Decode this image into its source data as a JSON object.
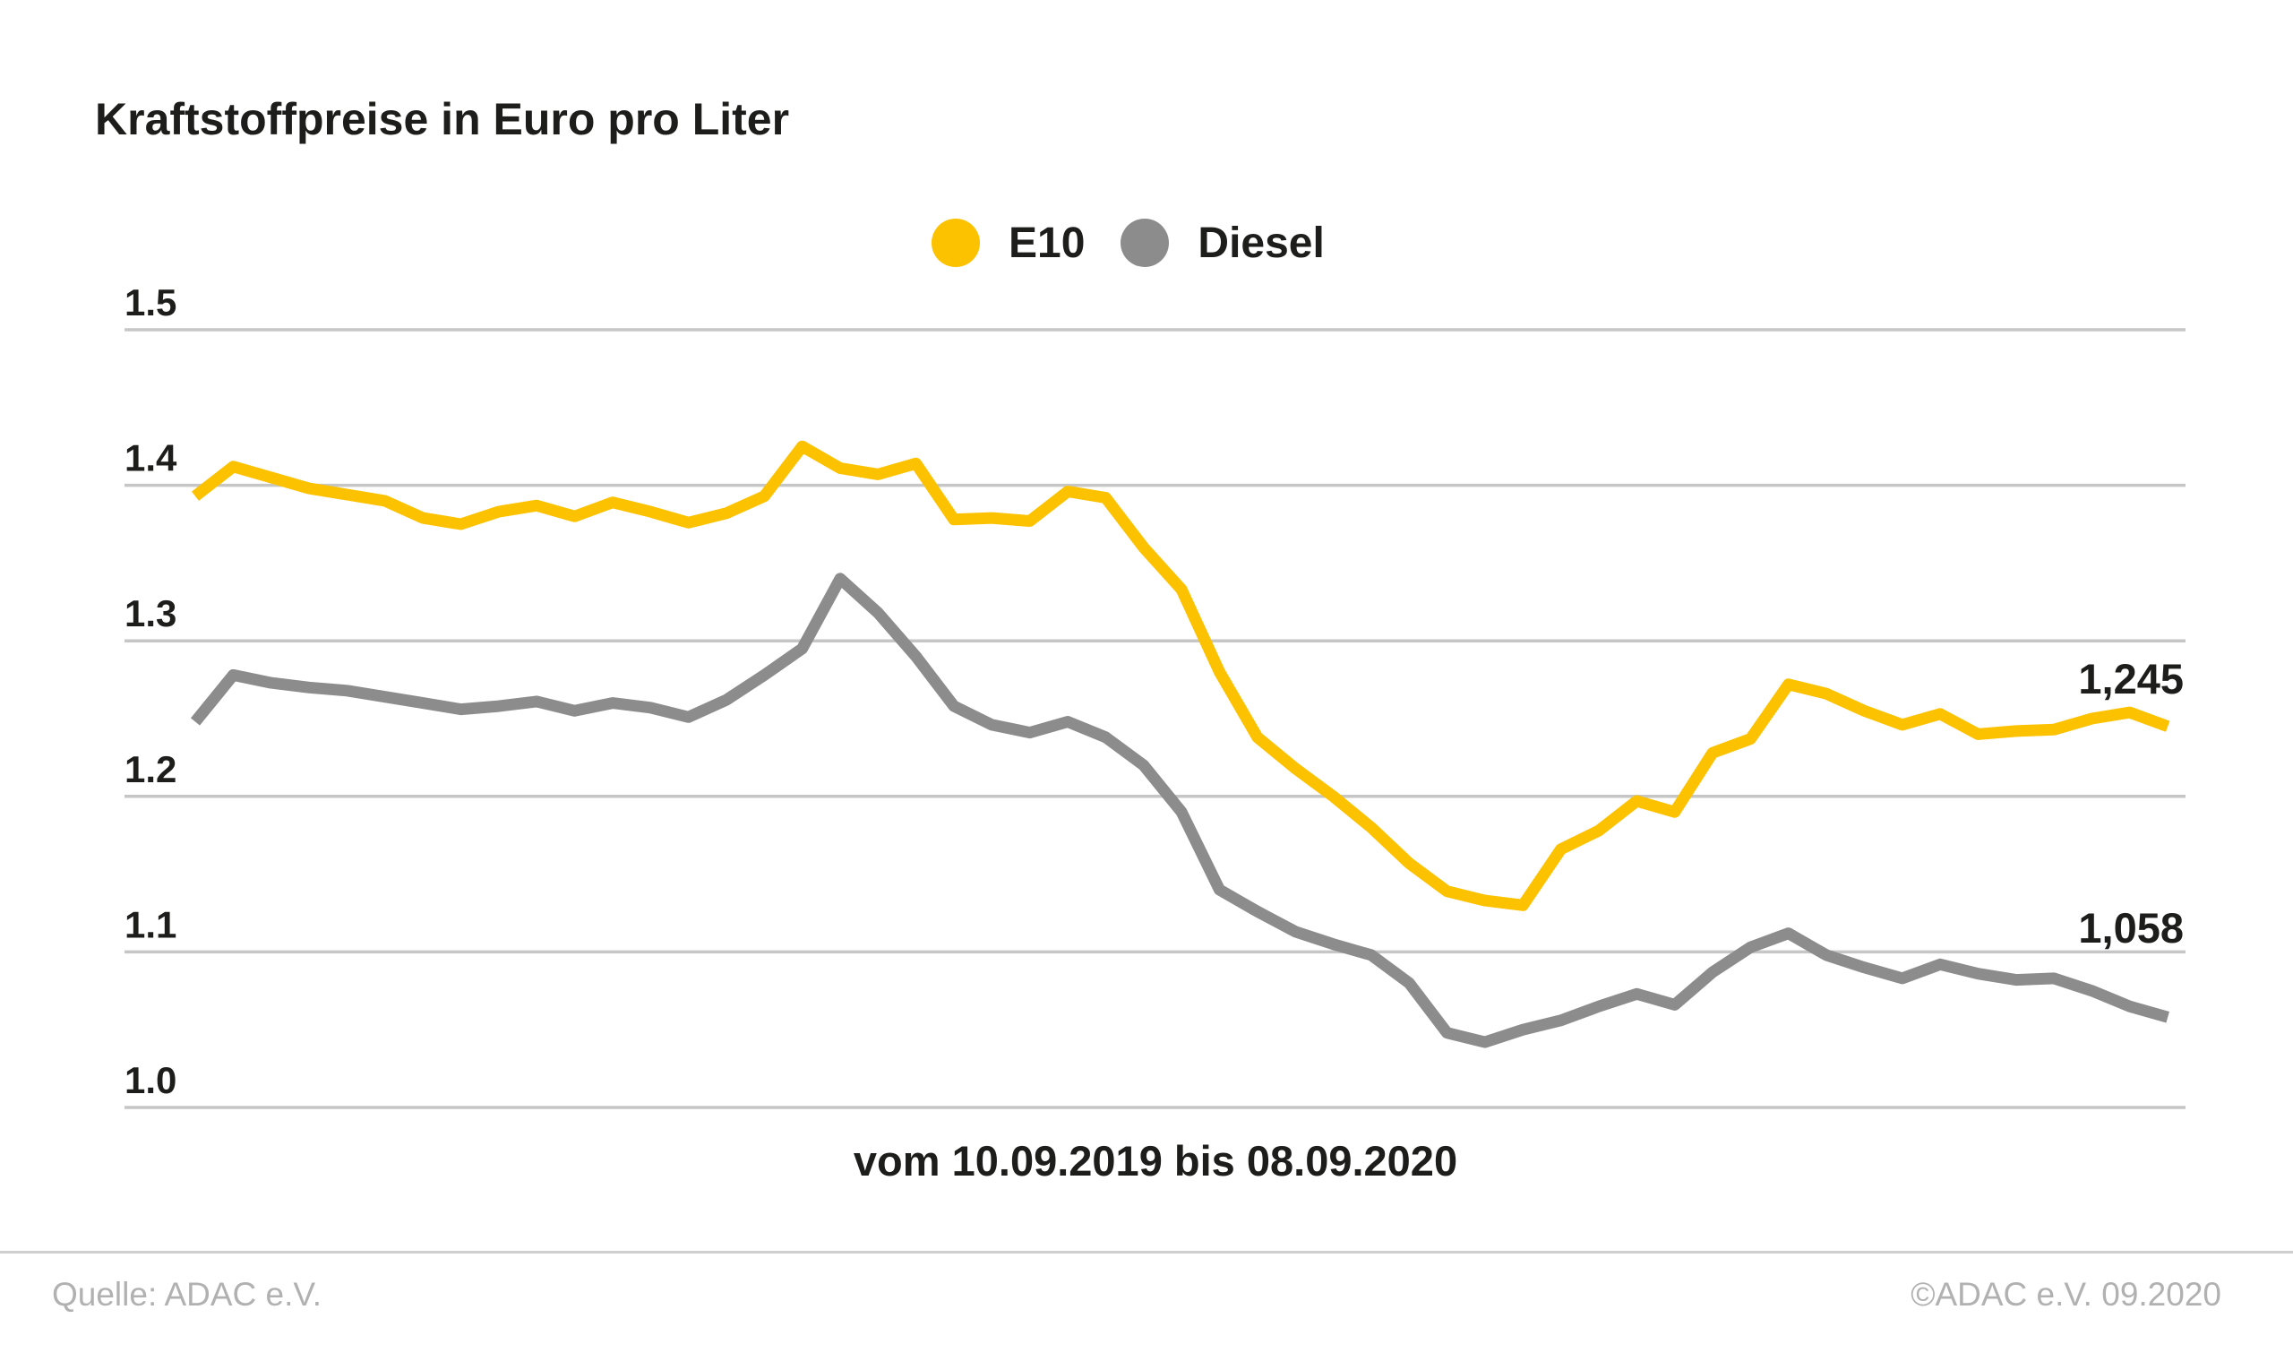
{
  "header": {
    "title": "Kraftstoffpreise in Euro pro Liter"
  },
  "footer": {
    "source": "Quelle: ADAC e.V.",
    "copyright": "©ADAC e.V. 09.2020"
  },
  "colors": {
    "e10_yellow": "#FCC200",
    "diesel_gray": "#8C8C8C",
    "text_dark": "#1D1D1B",
    "grid_gray": "#C6C6C6",
    "muted_footer_gray": "#B1B1B1",
    "divider_gray": "#CFCFCF",
    "background": "#FFFFFF"
  },
  "chart_data": {
    "type": "line",
    "title": "Kraftstoffpreise in Euro pro Liter",
    "xlabel": "vom 10.09.2019 bis 08.09.2020",
    "ylabel": "",
    "x_start_label": "10.09.2019",
    "x_end_label": "08.09.2020",
    "x_points": 53,
    "ylim": [
      1.0,
      1.5
    ],
    "y_ticks": [
      "1.5",
      "1.4",
      "1.3",
      "1.2",
      "1.1",
      "1.0"
    ],
    "grid": true,
    "legend_position": "top-center",
    "series": [
      {
        "name": "E10",
        "color": "#FCC200",
        "end_label": "1,245",
        "end_value": 1.245,
        "values": [
          1.393,
          1.412,
          1.405,
          1.398,
          1.394,
          1.39,
          1.379,
          1.375,
          1.383,
          1.387,
          1.38,
          1.389,
          1.383,
          1.376,
          1.382,
          1.393,
          1.425,
          1.411,
          1.407,
          1.414,
          1.378,
          1.379,
          1.377,
          1.396,
          1.392,
          1.36,
          1.333,
          1.28,
          1.238,
          1.218,
          1.2,
          1.18,
          1.157,
          1.139,
          1.133,
          1.13,
          1.166,
          1.178,
          1.197,
          1.19,
          1.228,
          1.237,
          1.272,
          1.266,
          1.255,
          1.246,
          1.253,
          1.24,
          1.242,
          1.243,
          1.25,
          1.254,
          1.245
        ]
      },
      {
        "name": "Diesel",
        "color": "#8C8C8C",
        "end_label": "1,058",
        "end_value": 1.058,
        "values": [
          1.248,
          1.278,
          1.273,
          1.27,
          1.268,
          1.264,
          1.26,
          1.256,
          1.258,
          1.261,
          1.255,
          1.26,
          1.257,
          1.251,
          1.262,
          1.278,
          1.295,
          1.34,
          1.318,
          1.29,
          1.258,
          1.246,
          1.241,
          1.248,
          1.238,
          1.22,
          1.19,
          1.14,
          1.126,
          1.113,
          1.105,
          1.098,
          1.08,
          1.048,
          1.042,
          1.05,
          1.056,
          1.065,
          1.073,
          1.066,
          1.087,
          1.103,
          1.112,
          1.098,
          1.09,
          1.083,
          1.092,
          1.086,
          1.082,
          1.083,
          1.075,
          1.065,
          1.058
        ]
      }
    ]
  }
}
